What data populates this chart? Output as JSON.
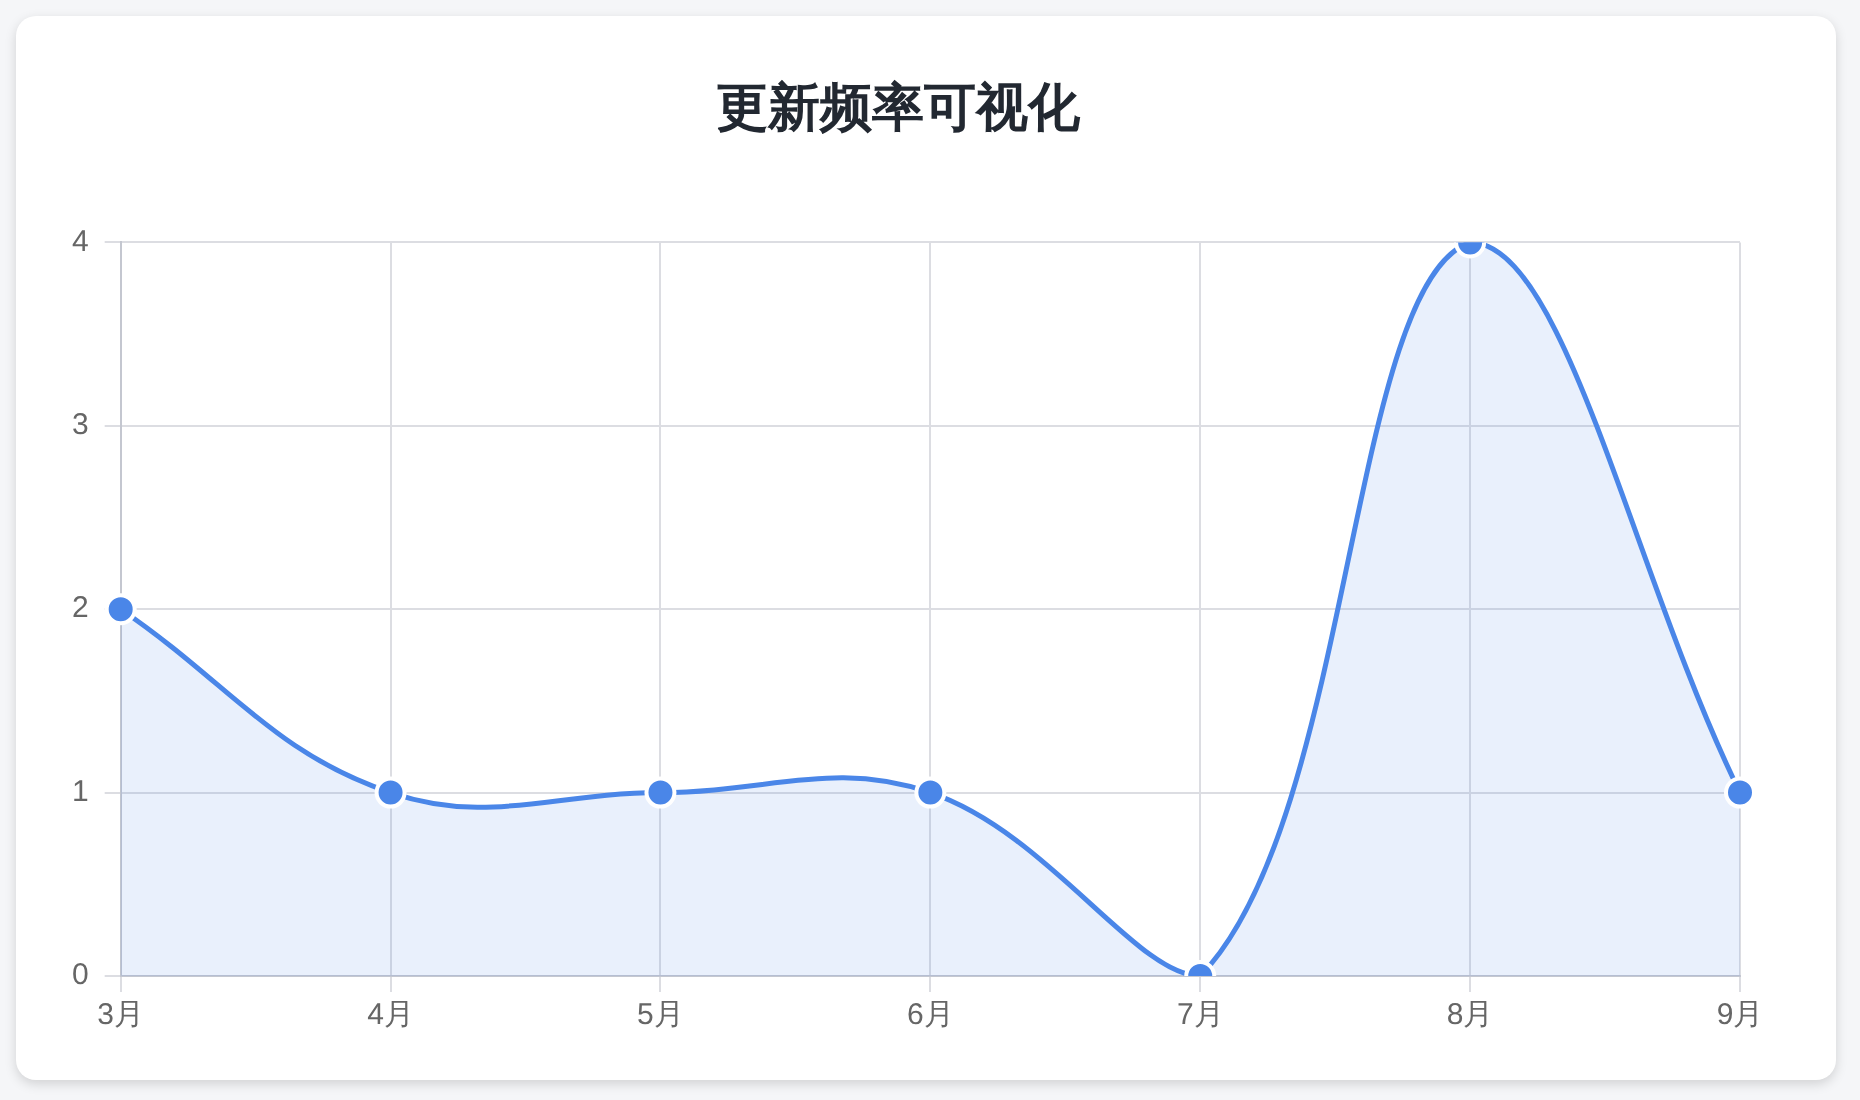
{
  "chart_data": {
    "type": "area",
    "title": "更新频率可视化",
    "categories": [
      "3月",
      "4月",
      "5月",
      "6月",
      "7月",
      "8月",
      "9月"
    ],
    "series": [
      {
        "color": "#4a86e8",
        "values": [
          2,
          1,
          1,
          1,
          0,
          4,
          1
        ]
      }
    ],
    "ylim": [
      0,
      4
    ],
    "yticks": [
      0,
      1,
      2,
      3,
      4
    ],
    "grid": true,
    "legend": false,
    "marker": "circle"
  }
}
